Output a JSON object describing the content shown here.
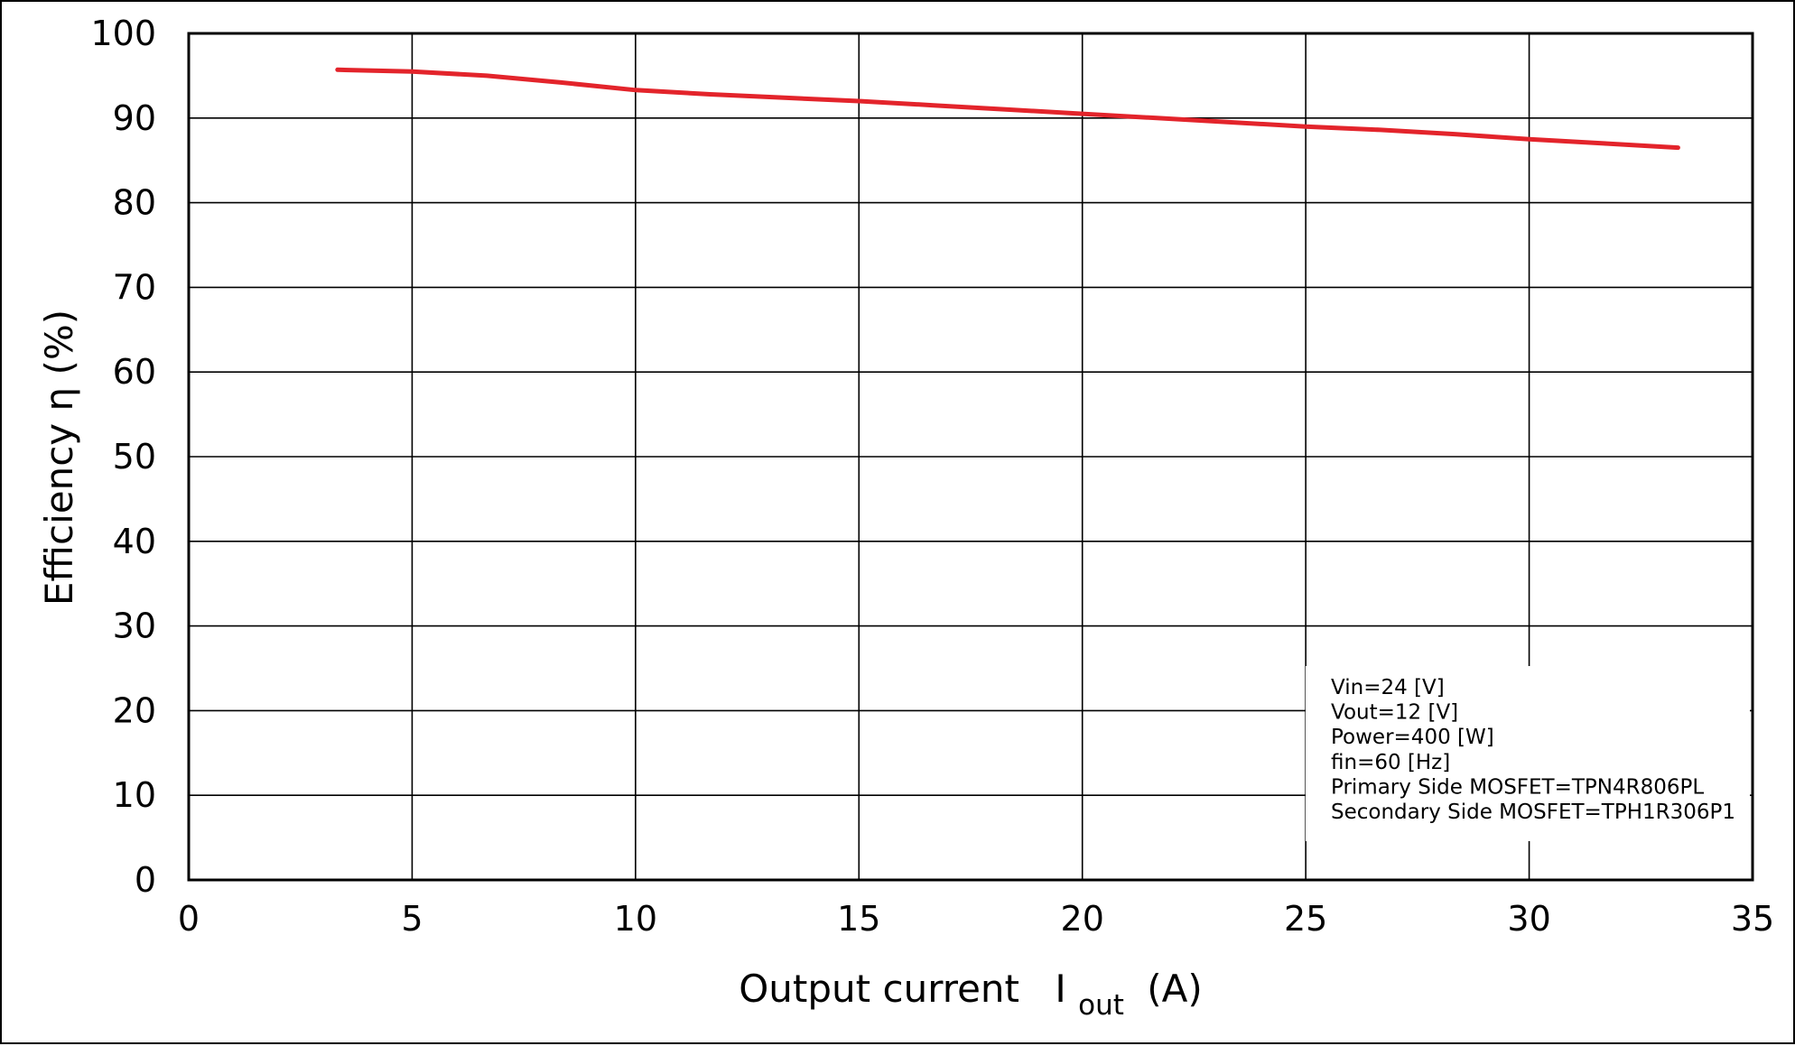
{
  "chart_data": {
    "type": "line",
    "title": "",
    "xlabel": "Output current",
    "xlabel_symbol": "I",
    "xlabel_subscript": "out",
    "xlabel_unit": "(A)",
    "ylabel": "Efficiency η (%)",
    "xlim": [
      0,
      35
    ],
    "ylim": [
      0,
      100
    ],
    "x_ticks": [
      "0",
      "5",
      "10",
      "15",
      "20",
      "25",
      "30",
      "35"
    ],
    "y_ticks": [
      "0",
      "10",
      "20",
      "30",
      "40",
      "50",
      "60",
      "70",
      "80",
      "90",
      "100"
    ],
    "grid": true,
    "series": [
      {
        "color": "#e3242b",
        "x": [
          3.33,
          5.0,
          6.67,
          8.33,
          10.0,
          11.67,
          13.33,
          15.0,
          16.67,
          18.33,
          20.0,
          21.67,
          23.33,
          25.0,
          26.67,
          28.33,
          30.0,
          31.67,
          33.33
        ],
        "y": [
          95.7,
          95.5,
          95.0,
          94.2,
          93.3,
          92.8,
          92.4,
          92.0,
          91.5,
          91.0,
          90.5,
          90.0,
          89.5,
          89.0,
          88.6,
          88.1,
          87.5,
          87.0,
          86.5
        ]
      }
    ],
    "annotation_lines": [
      "Vin=24 [V]",
      "Vout=12 [V]",
      "Power=400 [W]",
      "fin=60 [Hz]",
      "Primary Side MOSFET=TPN4R806PL",
      "Secondary Side MOSFET=TPH1R306P1"
    ]
  }
}
